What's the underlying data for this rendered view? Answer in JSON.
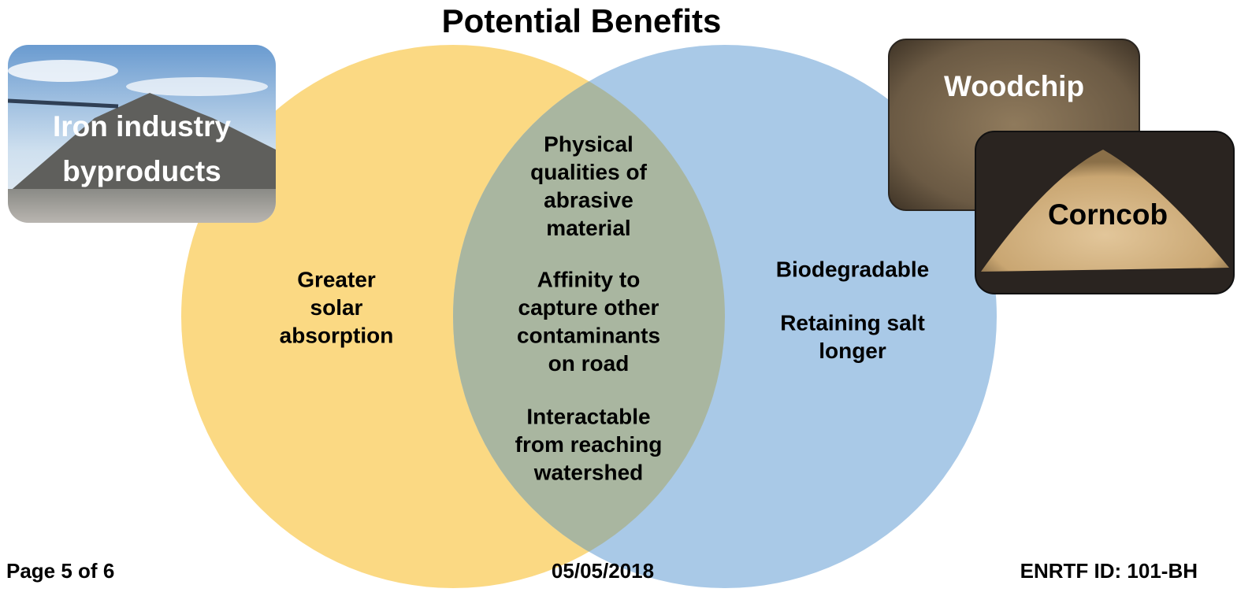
{
  "title": "Potential Benefits",
  "images": [
    {
      "label": [
        "Iron industry",
        "byproducts"
      ]
    },
    {
      "label": [
        "Woodchip"
      ]
    },
    {
      "label": [
        "Corncob"
      ]
    }
  ],
  "venn": {
    "left": {
      "paragraphs": [
        [
          "Greater",
          "solar",
          "absorption"
        ]
      ]
    },
    "intersection": {
      "paragraphs": [
        [
          "Physical",
          "qualities of",
          "abrasive",
          "material"
        ],
        [
          "Affinity to",
          "capture other",
          "contaminants",
          "on road"
        ],
        [
          "Interactable",
          "from reaching",
          "watershed"
        ]
      ]
    },
    "right": {
      "paragraphs": [
        [
          "Biodegradable"
        ],
        [
          "Retaining salt",
          "longer"
        ]
      ]
    }
  },
  "footer": {
    "page": "Page 5 of 6",
    "date": "05/05/2018",
    "id": "ENRTF ID: 101-BH"
  }
}
